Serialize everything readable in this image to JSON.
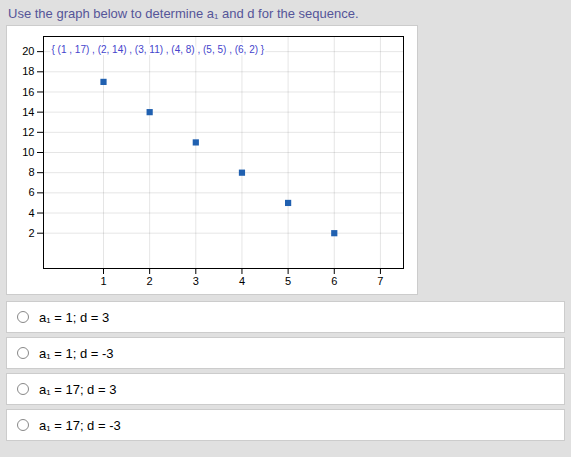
{
  "chart_data": {
    "type": "scatter",
    "title": "Use the graph below to determine a₁ and d for the sequence.",
    "annotations": [
      "{ (1 , 17) , (2, 14) , (3, 11) , (4, 8) , (5, 5) , (6, 2) }"
    ],
    "choices": [
      "a₁ = 1; d = 3",
      "a₁ = 1; d = -3",
      "a₁ = 17; d = 3",
      "a₁ = 17; d = -3"
    ],
    "x": [
      1,
      2,
      3,
      4,
      5,
      6
    ],
    "values": [
      17,
      14,
      11,
      8,
      5,
      2
    ],
    "color": "#2060B0",
    "marker": "square",
    "xlim": [
      -0.3,
      7.5
    ],
    "ylim": [
      -1.5,
      21.5
    ],
    "xticks": [
      1,
      2,
      3,
      4,
      5,
      6,
      7
    ],
    "yticks": [
      2,
      4,
      6,
      8,
      10,
      12,
      14,
      16,
      18,
      20
    ],
    "grid": true
  }
}
